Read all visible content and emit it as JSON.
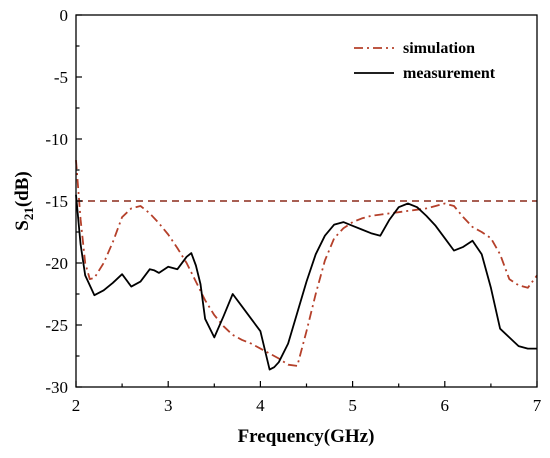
{
  "chart_data": {
    "type": "line",
    "title": "",
    "xlabel": "Frequency(GHz)",
    "ylabel": {
      "main": "S",
      "sub": "21",
      "rest": "(dB)"
    },
    "xlim": [
      2,
      7
    ],
    "ylim": [
      -30,
      0
    ],
    "xticks": [
      2,
      3,
      4,
      5,
      6,
      7
    ],
    "yticks": [
      0,
      -5,
      -10,
      -15,
      -20,
      -25,
      -30
    ],
    "grid": false,
    "legend_position": "top-right",
    "reference_line": {
      "y": -15,
      "style": "dashed",
      "color": "#8b2a1a"
    },
    "series": [
      {
        "name": "simulation",
        "style": "dash-dot",
        "color": "#b5402a",
        "x": [
          2.0,
          2.05,
          2.1,
          2.15,
          2.2,
          2.3,
          2.4,
          2.5,
          2.6,
          2.7,
          2.8,
          2.9,
          3.0,
          3.1,
          3.2,
          3.3,
          3.4,
          3.5,
          3.6,
          3.7,
          3.8,
          3.9,
          4.0,
          4.1,
          4.2,
          4.3,
          4.4,
          4.5,
          4.6,
          4.7,
          4.8,
          4.9,
          5.0,
          5.1,
          5.2,
          5.3,
          5.4,
          5.5,
          5.6,
          5.7,
          5.8,
          5.9,
          6.0,
          6.1,
          6.2,
          6.3,
          6.4,
          6.5,
          6.6,
          6.7,
          6.8,
          6.9,
          7.0
        ],
        "y": [
          -11.7,
          -16.5,
          -20.0,
          -21.3,
          -21.2,
          -20.0,
          -18.3,
          -16.3,
          -15.6,
          -15.4,
          -16.0,
          -16.8,
          -17.7,
          -18.8,
          -20.0,
          -21.5,
          -23.0,
          -24.2,
          -25.1,
          -25.8,
          -26.2,
          -26.5,
          -26.9,
          -27.3,
          -27.7,
          -28.2,
          -28.3,
          -25.5,
          -22.5,
          -19.8,
          -18.0,
          -17.2,
          -16.7,
          -16.4,
          -16.2,
          -16.1,
          -16.0,
          -15.9,
          -15.8,
          -15.7,
          -15.6,
          -15.4,
          -15.2,
          -15.4,
          -16.3,
          -17.1,
          -17.5,
          -18.0,
          -19.3,
          -21.3,
          -21.8,
          -22.0,
          -21.0
        ]
      },
      {
        "name": "measurement",
        "style": "solid",
        "color": "#000000",
        "x": [
          2.0,
          2.05,
          2.1,
          2.2,
          2.3,
          2.4,
          2.5,
          2.6,
          2.7,
          2.8,
          2.85,
          2.9,
          3.0,
          3.1,
          3.2,
          3.25,
          3.3,
          3.35,
          3.4,
          3.5,
          3.6,
          3.7,
          3.8,
          3.9,
          4.0,
          4.1,
          4.15,
          4.2,
          4.3,
          4.4,
          4.5,
          4.6,
          4.7,
          4.8,
          4.9,
          5.0,
          5.1,
          5.2,
          5.3,
          5.4,
          5.5,
          5.6,
          5.7,
          5.8,
          5.9,
          6.0,
          6.1,
          6.2,
          6.3,
          6.4,
          6.5,
          6.6,
          6.7,
          6.8,
          6.9,
          7.0
        ],
        "y": [
          -14.5,
          -18.5,
          -21.0,
          -22.6,
          -22.2,
          -21.6,
          -20.9,
          -21.9,
          -21.5,
          -20.5,
          -20.6,
          -20.8,
          -20.3,
          -20.5,
          -19.5,
          -19.2,
          -20.2,
          -21.7,
          -24.5,
          -26.0,
          -24.3,
          -22.5,
          -23.5,
          -24.5,
          -25.5,
          -28.6,
          -28.4,
          -28.0,
          -26.5,
          -24.0,
          -21.5,
          -19.3,
          -17.8,
          -16.9,
          -16.7,
          -17.0,
          -17.3,
          -17.6,
          -17.8,
          -16.5,
          -15.5,
          -15.2,
          -15.5,
          -16.2,
          -17.0,
          -18.0,
          -19.0,
          -18.7,
          -18.2,
          -19.3,
          -22.0,
          -25.3,
          -26.0,
          -26.7,
          -26.9,
          -26.9
        ]
      }
    ]
  }
}
